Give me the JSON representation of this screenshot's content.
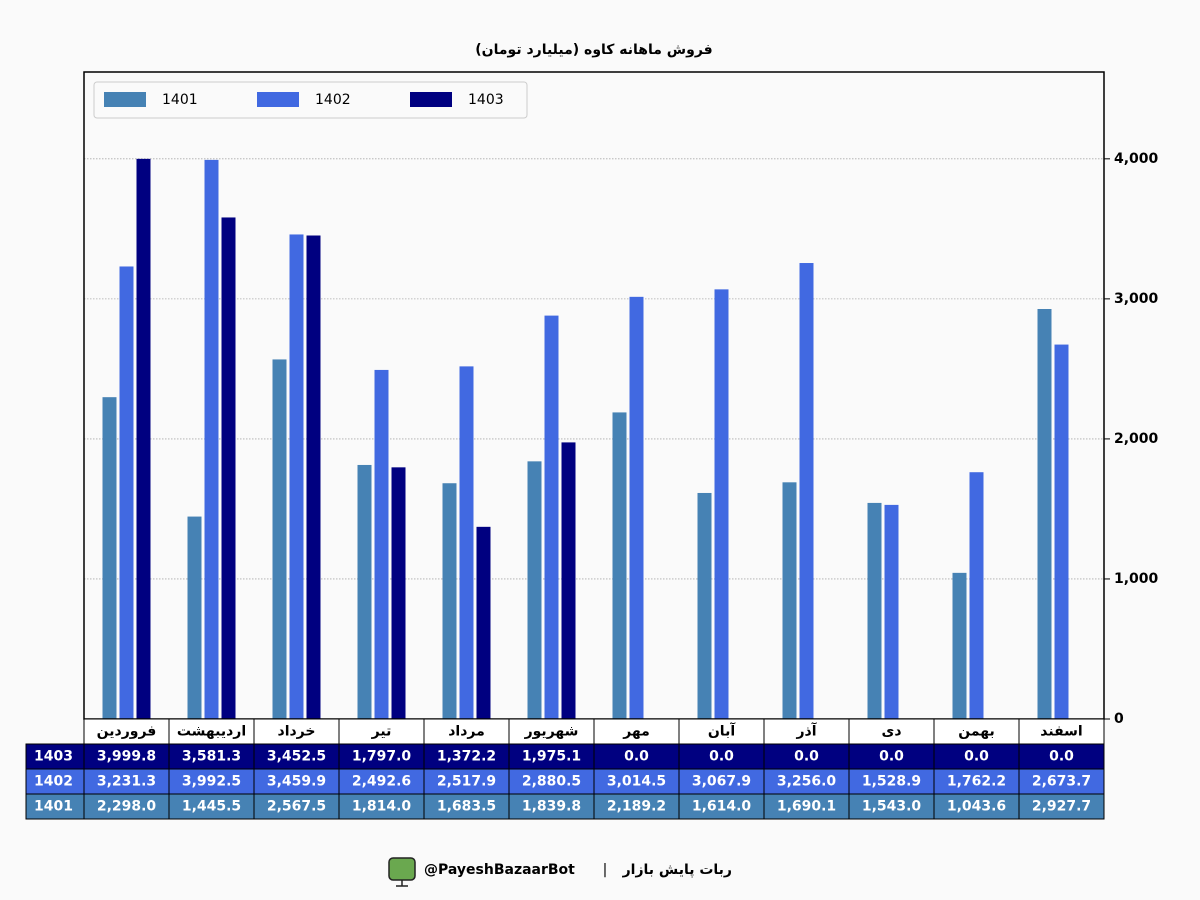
{
  "chart_data": {
    "type": "bar",
    "title": "فروش ماهانه کاوه (میلیارد تومان)",
    "categories": [
      "فروردین",
      "اردیبهشت",
      "خرداد",
      "تیر",
      "مرداد",
      "شهریور",
      "مهر",
      "آبان",
      "آذر",
      "دی",
      "بهمن",
      "اسفند"
    ],
    "series": [
      {
        "name": "1401",
        "color": "#4682b4",
        "values": [
          2298.0,
          1445.5,
          2567.5,
          1814.0,
          1683.5,
          1839.8,
          2189.2,
          1614.0,
          1690.1,
          1543.0,
          1043.6,
          2927.7
        ],
        "value_labels": [
          "2,298.0",
          "1,445.5",
          "2,567.5",
          "1,814.0",
          "1,683.5",
          "1,839.8",
          "2,189.2",
          "1,614.0",
          "1,690.1",
          "1,543.0",
          "1,043.6",
          "2,927.7"
        ]
      },
      {
        "name": "1402",
        "color": "#4169e1",
        "values": [
          3231.3,
          3992.5,
          3459.9,
          2492.6,
          2517.9,
          2880.5,
          3014.5,
          3067.9,
          3256.0,
          1528.9,
          1762.2,
          2673.7
        ],
        "value_labels": [
          "3,231.3",
          "3,992.5",
          "3,459.9",
          "2,492.6",
          "2,517.9",
          "2,880.5",
          "3,014.5",
          "3,067.9",
          "3,256.0",
          "1,528.9",
          "1,762.2",
          "2,673.7"
        ]
      },
      {
        "name": "1403",
        "color": "#000080",
        "values": [
          3999.8,
          3581.3,
          3452.5,
          1797.0,
          1372.2,
          1975.1,
          0.0,
          0.0,
          0.0,
          0.0,
          0.0,
          0.0
        ],
        "value_labels": [
          "3,999.8",
          "3,581.3",
          "3,452.5",
          "1,797.0",
          "1,372.2",
          "1,975.1",
          "0.0",
          "0.0",
          "0.0",
          "0.0",
          "0.0",
          "0.0"
        ]
      }
    ],
    "ylim": [
      0,
      4620
    ],
    "yticks": [
      0,
      {
        "value": 1000,
        "label": "1,000"
      },
      {
        "value": 2000,
        "label": "2,000"
      },
      {
        "value": 3000,
        "label": "3,000"
      },
      {
        "value": 4000,
        "label": "4,000"
      }
    ],
    "y_axis_side": "right",
    "grid": true,
    "legend": "upper left"
  },
  "footer": {
    "bot_name": "ربات پایش بازار",
    "separator": "|",
    "handle": "@PayeshBazaarBot"
  }
}
